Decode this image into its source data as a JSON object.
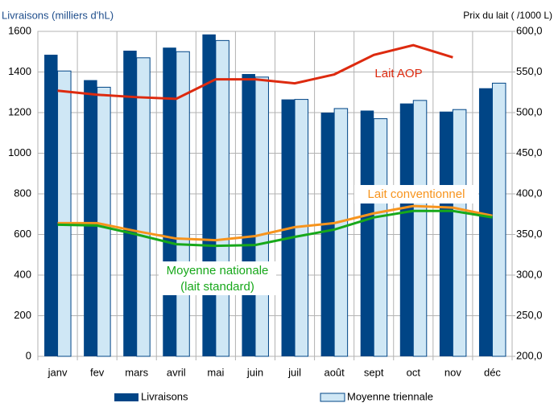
{
  "chart_data": {
    "type": "bar",
    "title": "Livraisons (milliers d'hL)",
    "y2_title": "Prix du lait (  /1000 L)",
    "categories": [
      "janv",
      "fev",
      "mars",
      "avril",
      "mai",
      "juin",
      "juil",
      "août",
      "sept",
      "oct",
      "nov",
      "déc"
    ],
    "ylim": [
      0,
      1600
    ],
    "yticks": [
      0,
      200,
      400,
      600,
      800,
      1000,
      1200,
      1400,
      1600
    ],
    "y2lim": [
      200,
      600
    ],
    "y2ticks": [
      {
        "value": 200,
        "label": "200,0"
      },
      {
        "value": 250,
        "label": "250,0"
      },
      {
        "value": 300,
        "label": "300,0"
      },
      {
        "value": 350,
        "label": "350,0"
      },
      {
        "value": 400,
        "label": "400,0"
      },
      {
        "value": 450,
        "label": "450,0"
      },
      {
        "value": 500,
        "label": "500,0"
      },
      {
        "value": 550,
        "label": "550,0"
      },
      {
        "value": 600,
        "label": "600,0"
      }
    ],
    "grid": true,
    "series": [
      {
        "name": "Livraisons",
        "color": "#004586",
        "values": [
          1485,
          1360,
          1505,
          1520,
          1585,
          1390,
          1265,
          1200,
          1210,
          1245,
          1205,
          1320
        ]
      },
      {
        "name": "Moyenne triennale",
        "color": "#cfe7f5",
        "values": [
          1405,
          1325,
          1470,
          1500,
          1555,
          1375,
          1265,
          1220,
          1170,
          1260,
          1215,
          1345
        ]
      },
      {
        "type": "line",
        "axis": "y2",
        "label": [
          "Lait AOP"
        ],
        "color": "#dd2a0f",
        "values": [
          527,
          522,
          519,
          517,
          541,
          541,
          536,
          547,
          571,
          583,
          568,
          null
        ]
      },
      {
        "type": "line",
        "axis": "y2",
        "label": [
          "Lait conventionnel"
        ],
        "color": "#f7941d",
        "values": [
          364,
          364,
          354,
          345,
          343,
          348,
          359,
          364,
          376,
          385,
          383,
          373
        ]
      },
      {
        "type": "line",
        "axis": "y2",
        "label": [
          "Moyenne nationale",
          "(lait standard)"
        ],
        "color": "#17a81a",
        "values": [
          362,
          361,
          350,
          338,
          336,
          337,
          347,
          356,
          371,
          379,
          379,
          371
        ]
      }
    ]
  }
}
